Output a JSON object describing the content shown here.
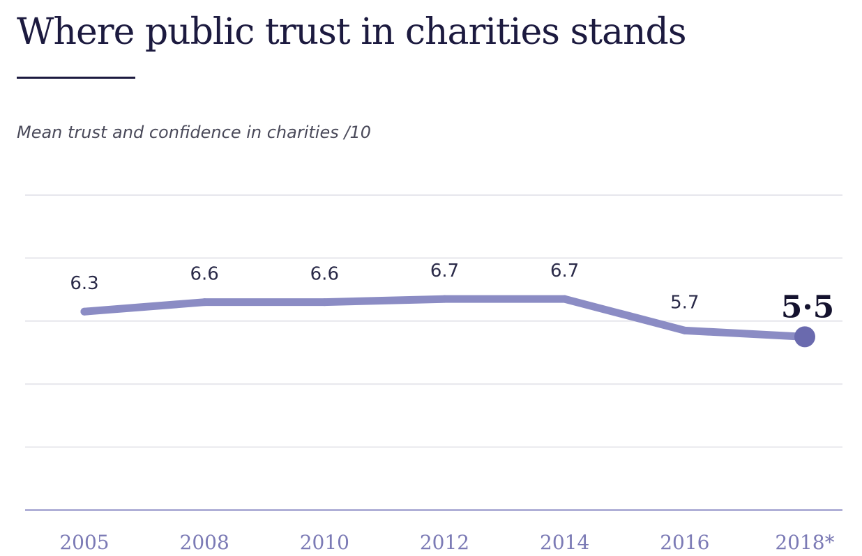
{
  "header": {
    "title": "Where public trust in charities stands",
    "subtitle": "Mean trust and confidence in charities /10"
  },
  "chart_data": {
    "type": "line",
    "title": "Where public trust in charities stands",
    "subtitle": "Mean trust and confidence in charities /10",
    "categories": [
      "2005",
      "2008",
      "2010",
      "2012",
      "2014",
      "2016",
      "2018*"
    ],
    "series": [
      {
        "values": [
          6.3,
          6.6,
          6.6,
          6.7,
          6.7,
          5.7,
          5.5
        ]
      }
    ],
    "data_labels": [
      "6.3",
      "6.6",
      "6.6",
      "6.7",
      "6.7",
      "5.7",
      "5·5"
    ],
    "ylim": [
      0,
      10
    ],
    "grid": true,
    "legend": "none",
    "highlight_last_point": true,
    "colors": {
      "line": "#8b8cc4",
      "marker": "#6a6aae",
      "grid": "#e6e6ec",
      "axis": "#9a9acc",
      "tick_text": "#7b7ab5",
      "title": "#1c1a3f"
    }
  }
}
